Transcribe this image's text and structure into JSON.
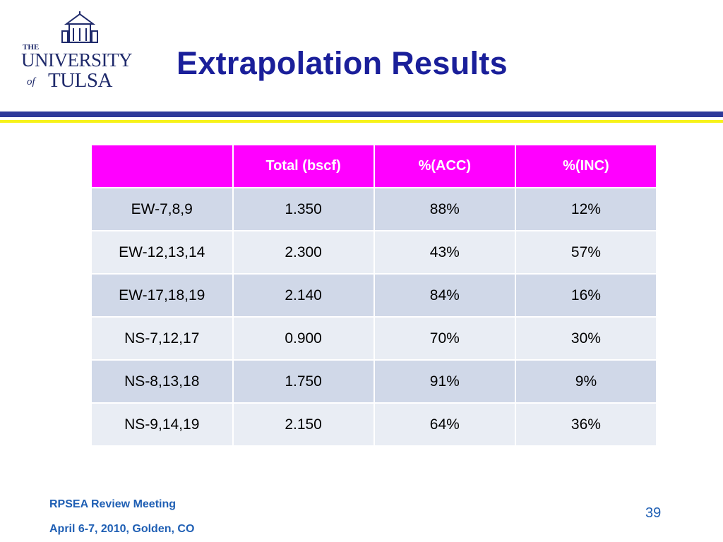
{
  "slide": {
    "title": "Extrapolation Results",
    "page_number": "39"
  },
  "logo": {
    "the": "THE",
    "university": "UNIVERSITY",
    "of": "of",
    "tulsa": "TULSA",
    "color": "#1f2a6b"
  },
  "table": {
    "headers": [
      "",
      "Total (bscf)",
      "%(ACC)",
      "%(INC)"
    ],
    "rows": [
      [
        "EW-7,8,9",
        "1.350",
        "88%",
        "12%"
      ],
      [
        "EW-12,13,14",
        "2.300",
        "43%",
        "57%"
      ],
      [
        "EW-17,18,19",
        "2.140",
        "84%",
        "16%"
      ],
      [
        "NS-7,12,17",
        "0.900",
        "70%",
        "30%"
      ],
      [
        "NS-8,13,18",
        "1.750",
        "91%",
        "9%"
      ],
      [
        "NS-9,14,19",
        "2.150",
        "64%",
        "36%"
      ]
    ],
    "header_color": "#ff00ff"
  },
  "footer": {
    "line1": "RPSEA Review Meeting",
    "line2": "April 6-7, 2010, Golden, CO"
  },
  "colors": {
    "title": "#1a1f9a",
    "rule_blue": "#2e3a9a",
    "rule_yellow": "#f7f21a",
    "footer": "#1f5fb4"
  }
}
